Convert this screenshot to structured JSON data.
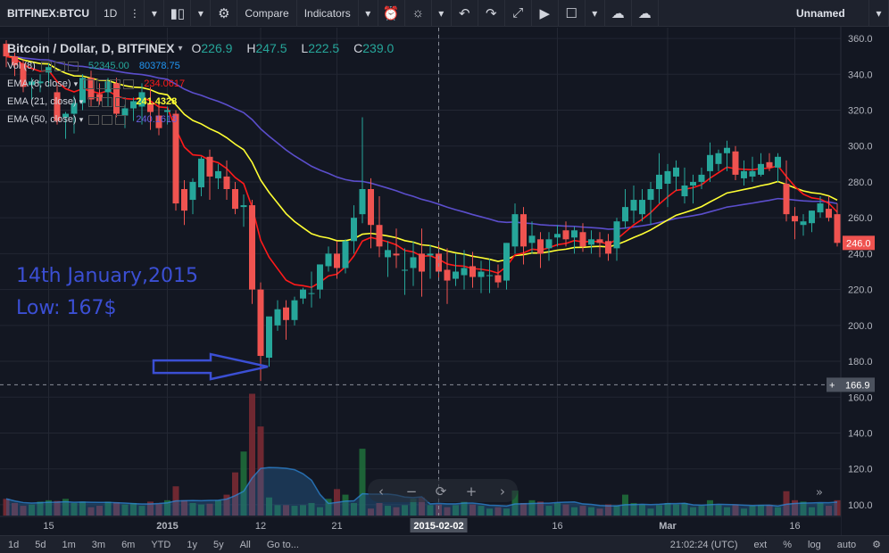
{
  "toolbar": {
    "symbol": "BITFINEX:BTCU",
    "interval": "1D",
    "compare": "Compare",
    "indicators": "Indicators",
    "layout_name": "Unnamed"
  },
  "legend": {
    "title": "Bitcoin / Dollar, D, BITFINEX",
    "open_label": "O",
    "open": "226.9",
    "high_label": "H",
    "high": "247.5",
    "low_label": "L",
    "low": "222.5",
    "close_label": "C",
    "close": "239.0",
    "indicators": [
      {
        "name": "Vol (8)",
        "values": [
          "52345.00",
          "80378.75"
        ]
      },
      {
        "name": "EMA (8, close)",
        "values": [
          "234.0617"
        ]
      },
      {
        "name": "EMA (21, close)",
        "values": [
          "241.4328"
        ]
      },
      {
        "name": "EMA (50, close)",
        "values": [
          "240.1613"
        ]
      }
    ]
  },
  "annotation": {
    "line1": "14th January,2015",
    "line2": "Low: 167$"
  },
  "bottom": {
    "ranges": [
      "1d",
      "5d",
      "1m",
      "3m",
      "6m",
      "YTD",
      "1y",
      "5y",
      "All"
    ],
    "goto": "Go to...",
    "time": "21:02:24 (UTC)",
    "ext": "ext",
    "pct": "%",
    "log": "log",
    "auto": "auto"
  },
  "chart_data": {
    "type": "candlestick",
    "symbol": "Bitcoin / Dollar, D, BITFINEX",
    "y_ticks": [
      "360.0",
      "340.0",
      "320.0",
      "300.0",
      "280.0",
      "260.0",
      "240.0",
      "220.0",
      "200.0",
      "180.0",
      "160.0",
      "140.0",
      "120.0",
      "100.0"
    ],
    "ylim": [
      94,
      366
    ],
    "x_ticks": [
      {
        "label": "15",
        "idx": 5
      },
      {
        "label": "2015",
        "idx": 19
      },
      {
        "label": "12",
        "idx": 30
      },
      {
        "label": "21",
        "idx": 39
      },
      {
        "label": "2015-02-02",
        "idx": 51
      },
      {
        "label": "16",
        "idx": 65
      },
      {
        "label": "Mar",
        "idx": 78
      },
      {
        "label": "16",
        "idx": 93
      }
    ],
    "last_price_label": "246.0",
    "crosshair_price_label": "166.9",
    "ohlc": [
      [
        357,
        359,
        344,
        350
      ],
      [
        350,
        352,
        339,
        345
      ],
      [
        346,
        348,
        330,
        333
      ],
      [
        334,
        338,
        326,
        336
      ],
      [
        335,
        340,
        330,
        336
      ],
      [
        341,
        346,
        333,
        344
      ],
      [
        330,
        334,
        312,
        314
      ],
      [
        316,
        319,
        304,
        318
      ],
      [
        318,
        328,
        307,
        324
      ],
      [
        324,
        340,
        320,
        338
      ],
      [
        338,
        342,
        322,
        326
      ],
      [
        329,
        335,
        323,
        325
      ],
      [
        330,
        338,
        322,
        336
      ],
      [
        335,
        338,
        316,
        318
      ],
      [
        317,
        323,
        310,
        321
      ],
      [
        321,
        327,
        314,
        325
      ],
      [
        322,
        335,
        312,
        330
      ],
      [
        324,
        333,
        309,
        319
      ],
      [
        317,
        325,
        306,
        310
      ],
      [
        319,
        322,
        312,
        320
      ],
      [
        318,
        320,
        264,
        268
      ],
      [
        276,
        281,
        256,
        264
      ],
      [
        270,
        282,
        262,
        280
      ],
      [
        277,
        294,
        272,
        293
      ],
      [
        294,
        298,
        270,
        283
      ],
      [
        282,
        290,
        276,
        286
      ],
      [
        283,
        292,
        270,
        276
      ],
      [
        276,
        280,
        262,
        265
      ],
      [
        266,
        273,
        255,
        267
      ],
      [
        267,
        270,
        212,
        220
      ],
      [
        220,
        224,
        169,
        183
      ],
      [
        182,
        204,
        177,
        205
      ],
      [
        200,
        214,
        197,
        209
      ],
      [
        210,
        214,
        192,
        203
      ],
      [
        203,
        216,
        200,
        214
      ],
      [
        215,
        221,
        212,
        220
      ],
      [
        218,
        230,
        210,
        218
      ],
      [
        220,
        234,
        215,
        234
      ],
      [
        233,
        244,
        230,
        240
      ],
      [
        240,
        247,
        226,
        232
      ],
      [
        232,
        248,
        229,
        247
      ],
      [
        247,
        267,
        240,
        260
      ],
      [
        262,
        316,
        257,
        276
      ],
      [
        276,
        282,
        243,
        256
      ],
      [
        256,
        272,
        238,
        244
      ],
      [
        238,
        247,
        227,
        242
      ],
      [
        240,
        254,
        232,
        239
      ],
      [
        231,
        243,
        217,
        231
      ],
      [
        232,
        247,
        222,
        238
      ],
      [
        240,
        254,
        216,
        230
      ],
      [
        239,
        245,
        226,
        240
      ],
      [
        240,
        247,
        226,
        230
      ],
      [
        231,
        243,
        212,
        225
      ],
      [
        226,
        240,
        222,
        230
      ],
      [
        228,
        242,
        220,
        232
      ],
      [
        233,
        241,
        221,
        227
      ],
      [
        227,
        236,
        218,
        230
      ],
      [
        228,
        237,
        218,
        228
      ],
      [
        228,
        234,
        221,
        224
      ],
      [
        225,
        246,
        220,
        246
      ],
      [
        244,
        268,
        240,
        262
      ],
      [
        262,
        266,
        234,
        244
      ],
      [
        246,
        258,
        240,
        250
      ],
      [
        248,
        252,
        232,
        240
      ],
      [
        243,
        252,
        236,
        248
      ],
      [
        249,
        256,
        244,
        251
      ],
      [
        253,
        258,
        244,
        248
      ],
      [
        249,
        255,
        240,
        253
      ],
      [
        252,
        257,
        241,
        244
      ],
      [
        245,
        253,
        240,
        248
      ],
      [
        248,
        252,
        238,
        246
      ],
      [
        247,
        251,
        236,
        240
      ],
      [
        243,
        260,
        236,
        258
      ],
      [
        258,
        276,
        254,
        266
      ],
      [
        264,
        278,
        257,
        270
      ],
      [
        262,
        276,
        258,
        270
      ],
      [
        270,
        280,
        256,
        276
      ],
      [
        276,
        296,
        268,
        284
      ],
      [
        279,
        290,
        266,
        286
      ],
      [
        283,
        292,
        275,
        288
      ],
      [
        272,
        288,
        268,
        278
      ],
      [
        278,
        284,
        268,
        280
      ],
      [
        280,
        288,
        276,
        284
      ],
      [
        286,
        302,
        280,
        295
      ],
      [
        290,
        298,
        286,
        296
      ],
      [
        296,
        303,
        286,
        299
      ],
      [
        297,
        300,
        281,
        284
      ],
      [
        282,
        292,
        278,
        286
      ],
      [
        283,
        294,
        280,
        286
      ],
      [
        284,
        296,
        283,
        290
      ],
      [
        291,
        296,
        286,
        288
      ],
      [
        288,
        296,
        280,
        294
      ],
      [
        279,
        292,
        258,
        262
      ],
      [
        261,
        266,
        248,
        258
      ],
      [
        256,
        262,
        250,
        258
      ],
      [
        257,
        264,
        252,
        264
      ],
      [
        263,
        272,
        260,
        268
      ],
      [
        265,
        272,
        258,
        260
      ],
      [
        262,
        268,
        244,
        246
      ]
    ],
    "volume_axis_note": "volume in separate overlay scale",
    "volume": [
      24,
      18,
      14,
      16,
      20,
      22,
      21,
      24,
      18,
      20,
      12,
      14,
      20,
      19,
      16,
      18,
      14,
      20,
      17,
      22,
      42,
      22,
      18,
      16,
      17,
      22,
      30,
      62,
      92,
      175,
      128,
      26,
      15,
      15,
      14,
      15,
      18,
      12,
      24,
      38,
      30,
      18,
      96,
      10,
      18,
      14,
      12,
      15,
      24,
      26,
      15,
      16,
      12,
      15,
      20,
      16,
      14,
      10,
      12,
      10,
      36,
      18,
      22,
      20,
      14,
      18,
      16,
      12,
      14,
      12,
      10,
      16,
      14,
      30,
      18,
      16,
      10,
      15,
      18,
      16,
      18,
      12,
      14,
      22,
      15,
      12,
      16,
      10,
      14,
      15,
      15,
      12,
      35,
      22,
      20,
      12,
      18,
      14,
      22
    ],
    "ema_colors": {
      "ema8": "#ff1a1a",
      "ema21": "#ffff33",
      "ema50": "#5b4ecc"
    },
    "up_color": "#26a69a",
    "down_color": "#ef5350"
  }
}
